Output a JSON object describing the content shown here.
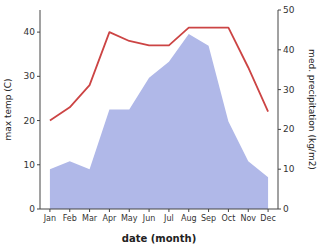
{
  "chart_data": {
    "type": "line",
    "categories": [
      "Jan",
      "Feb",
      "Mar",
      "Apr",
      "May",
      "Jun",
      "Jul",
      "Aug",
      "Sep",
      "Oct",
      "Nov",
      "Dec"
    ],
    "xlabel": "date (month)",
    "ylabel": "max temp (C)",
    "y2label": "med. precipitation (kg/m2)",
    "ylim": [
      0,
      45
    ],
    "yticks": [
      0,
      10,
      20,
      30,
      40
    ],
    "y2lim": [
      0,
      50
    ],
    "y2ticks": [
      0,
      10,
      20,
      30,
      40,
      50
    ],
    "grid": false,
    "series": [
      {
        "type": "area",
        "axis": "y2",
        "color": "#b0b8e8",
        "values": [
          10,
          12,
          10,
          25,
          25,
          33,
          37,
          44,
          41,
          22,
          12,
          8
        ]
      },
      {
        "type": "line",
        "color": "#cc4444",
        "values": [
          20,
          23,
          28,
          40,
          38,
          37,
          37,
          41,
          41,
          41,
          32,
          22
        ]
      }
    ]
  }
}
